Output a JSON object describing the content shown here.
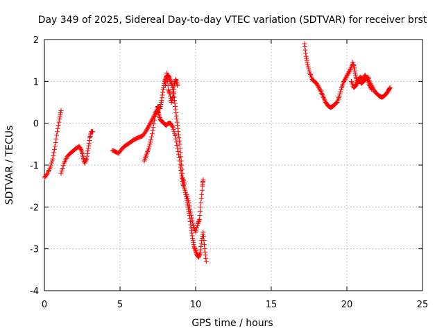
{
  "chart_data": {
    "type": "scatter",
    "title": "Day 349 of 2025, Sidereal Day-to-day VTEC variation (SDTVAR) for receiver brst",
    "xlabel": "GPS time / hours",
    "ylabel": "SDTVAR / TECUs",
    "xlim": [
      0,
      25
    ],
    "ylim": [
      -4,
      2
    ],
    "xticks": [
      "0",
      "5",
      "10",
      "15",
      "20",
      "25"
    ],
    "yticks": [
      "-4",
      "-3",
      "-2",
      "-1",
      "0",
      "1",
      "2"
    ],
    "grid": true,
    "marker": "plus",
    "colors": {
      "series": "#ff0000"
    },
    "series": [
      {
        "name": "SDTVAR",
        "segments": [
          [
            [
              0.0,
              -1.3
            ],
            [
              0.2,
              -1.2
            ],
            [
              0.4,
              -1.05
            ],
            [
              0.55,
              -0.85
            ],
            [
              0.7,
              -0.55
            ],
            [
              0.85,
              -0.2
            ],
            [
              1.0,
              0.1
            ],
            [
              1.1,
              0.3
            ]
          ],
          [
            [
              1.1,
              -1.2
            ],
            [
              1.3,
              -0.95
            ],
            [
              1.5,
              -0.8
            ],
            [
              1.7,
              -0.72
            ],
            [
              1.9,
              -0.66
            ],
            [
              2.1,
              -0.6
            ],
            [
              2.3,
              -0.55
            ],
            [
              2.45,
              -0.65
            ],
            [
              2.55,
              -0.8
            ],
            [
              2.65,
              -0.95
            ],
            [
              2.8,
              -0.85
            ],
            [
              2.9,
              -0.6
            ],
            [
              3.0,
              -0.35
            ],
            [
              3.1,
              -0.2
            ],
            [
              3.2,
              -0.2
            ]
          ],
          [
            [
              4.5,
              -0.65
            ],
            [
              4.7,
              -0.68
            ],
            [
              4.9,
              -0.72
            ],
            [
              5.1,
              -0.62
            ],
            [
              5.3,
              -0.55
            ],
            [
              5.5,
              -0.5
            ],
            [
              5.7,
              -0.45
            ],
            [
              5.9,
              -0.4
            ],
            [
              6.1,
              -0.36
            ],
            [
              6.3,
              -0.33
            ],
            [
              6.5,
              -0.3
            ],
            [
              6.7,
              -0.2
            ],
            [
              6.85,
              -0.1
            ],
            [
              7.0,
              0.0
            ],
            [
              7.15,
              0.1
            ],
            [
              7.3,
              0.2
            ],
            [
              7.45,
              0.3
            ],
            [
              7.55,
              0.25
            ],
            [
              7.65,
              0.1
            ],
            [
              7.75,
              0.05
            ],
            [
              7.9,
              0.0
            ],
            [
              8.05,
              -0.05
            ],
            [
              8.2,
              0.0
            ],
            [
              8.35,
              0.0
            ],
            [
              8.5,
              -0.1
            ],
            [
              8.65,
              -0.3
            ],
            [
              8.8,
              -0.6
            ],
            [
              8.95,
              -0.9
            ],
            [
              9.05,
              -1.2
            ],
            [
              9.15,
              -1.45
            ],
            [
              9.3,
              -1.6
            ],
            [
              9.4,
              -1.8
            ],
            [
              9.5,
              -2.0
            ],
            [
              9.6,
              -2.2
            ],
            [
              9.7,
              -2.5
            ],
            [
              9.8,
              -2.75
            ],
            [
              9.9,
              -2.95
            ],
            [
              10.0,
              -3.05
            ],
            [
              10.1,
              -3.15
            ],
            [
              10.2,
              -3.2
            ],
            [
              10.3,
              -3.1
            ],
            [
              10.4,
              -2.8
            ],
            [
              10.5,
              -2.6
            ],
            [
              10.6,
              -3.0
            ],
            [
              10.7,
              -3.3
            ]
          ],
          [
            [
              6.6,
              -0.9
            ],
            [
              6.75,
              -0.75
            ],
            [
              6.9,
              -0.6
            ],
            [
              7.05,
              -0.4
            ],
            [
              7.2,
              -0.1
            ],
            [
              7.35,
              0.25
            ],
            [
              7.5,
              0.4
            ],
            [
              7.65,
              0.35
            ],
            [
              7.75,
              0.55
            ],
            [
              7.85,
              0.8
            ],
            [
              7.95,
              1.0
            ],
            [
              8.05,
              1.1
            ],
            [
              8.15,
              1.15
            ],
            [
              8.25,
              1.1
            ],
            [
              8.35,
              1.0
            ],
            [
              8.45,
              0.9
            ],
            [
              8.55,
              0.7
            ],
            [
              8.65,
              0.4
            ],
            [
              8.75,
              0.1
            ],
            [
              8.85,
              -0.2
            ],
            [
              8.95,
              -0.5
            ],
            [
              9.05,
              -0.9
            ],
            [
              9.15,
              -1.3
            ],
            [
              9.25,
              -1.45
            ]
          ],
          [
            [
              8.0,
              0.9
            ],
            [
              8.1,
              1.2
            ],
            [
              8.2,
              0.8
            ],
            [
              8.3,
              0.7
            ],
            [
              8.4,
              0.5
            ],
            [
              8.5,
              0.65
            ],
            [
              8.6,
              0.95
            ],
            [
              8.7,
              1.05
            ],
            [
              8.8,
              0.9
            ]
          ],
          [
            [
              9.4,
              -1.7
            ],
            [
              9.55,
              -1.9
            ],
            [
              9.7,
              -2.2
            ],
            [
              9.85,
              -2.45
            ],
            [
              10.0,
              -2.6
            ],
            [
              10.15,
              -2.4
            ],
            [
              10.25,
              -2.3
            ],
            [
              10.35,
              -1.9
            ],
            [
              10.45,
              -1.5
            ],
            [
              10.5,
              -1.35
            ]
          ],
          [
            [
              17.2,
              1.9
            ],
            [
              17.3,
              1.6
            ],
            [
              17.4,
              1.4
            ],
            [
              17.55,
              1.2
            ],
            [
              17.7,
              1.05
            ],
            [
              17.85,
              1.0
            ],
            [
              18.0,
              0.95
            ],
            [
              18.15,
              0.85
            ],
            [
              18.3,
              0.75
            ],
            [
              18.45,
              0.62
            ],
            [
              18.6,
              0.5
            ],
            [
              18.75,
              0.42
            ],
            [
              18.9,
              0.38
            ],
            [
              19.05,
              0.4
            ],
            [
              19.2,
              0.45
            ],
            [
              19.35,
              0.5
            ],
            [
              19.5,
              0.65
            ],
            [
              19.65,
              0.85
            ],
            [
              19.8,
              1.0
            ],
            [
              19.95,
              1.1
            ],
            [
              20.1,
              1.2
            ],
            [
              20.25,
              1.3
            ],
            [
              20.4,
              1.45
            ],
            [
              20.5,
              1.3
            ],
            [
              20.6,
              1.1
            ],
            [
              20.7,
              0.95
            ],
            [
              20.8,
              1.05
            ],
            [
              20.95,
              0.95
            ],
            [
              21.1,
              1.0
            ],
            [
              21.25,
              1.05
            ],
            [
              21.4,
              1.1
            ],
            [
              21.55,
              0.95
            ],
            [
              21.7,
              0.85
            ],
            [
              21.85,
              0.75
            ],
            [
              22.0,
              0.7
            ],
            [
              22.15,
              0.65
            ],
            [
              22.3,
              0.62
            ],
            [
              22.45,
              0.65
            ],
            [
              22.6,
              0.7
            ],
            [
              22.75,
              0.78
            ],
            [
              22.85,
              0.85
            ]
          ],
          [
            [
              20.3,
              1.0
            ],
            [
              20.45,
              0.85
            ],
            [
              20.6,
              0.9
            ],
            [
              20.75,
              1.05
            ],
            [
              20.9,
              1.1
            ],
            [
              21.05,
              1.05
            ],
            [
              21.2,
              1.15
            ],
            [
              21.35,
              1.05
            ],
            [
              21.5,
              0.9
            ],
            [
              21.65,
              0.8
            ]
          ]
        ]
      }
    ]
  }
}
